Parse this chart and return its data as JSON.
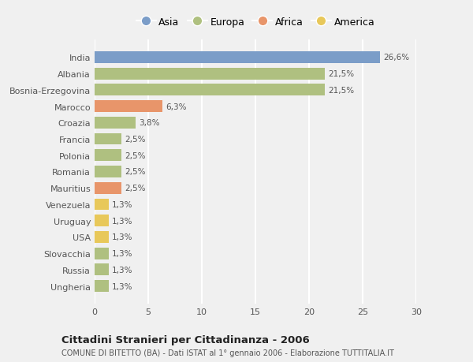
{
  "categories": [
    "Ungheria",
    "Russia",
    "Slovacchia",
    "USA",
    "Uruguay",
    "Venezuela",
    "Mauritius",
    "Romania",
    "Polonia",
    "Francia",
    "Croazia",
    "Marocco",
    "Bosnia-Erzegovina",
    "Albania",
    "India"
  ],
  "values": [
    1.3,
    1.3,
    1.3,
    1.3,
    1.3,
    1.3,
    2.5,
    2.5,
    2.5,
    2.5,
    3.8,
    6.3,
    21.5,
    21.5,
    26.6
  ],
  "colors": [
    "#afc080",
    "#afc080",
    "#afc080",
    "#e8c85a",
    "#e8c85a",
    "#e8c85a",
    "#e8956a",
    "#afc080",
    "#afc080",
    "#afc080",
    "#afc080",
    "#e8956a",
    "#afc080",
    "#afc080",
    "#7b9dc8"
  ],
  "labels": [
    "1,3%",
    "1,3%",
    "1,3%",
    "1,3%",
    "1,3%",
    "1,3%",
    "2,5%",
    "2,5%",
    "2,5%",
    "2,5%",
    "3,8%",
    "6,3%",
    "21,5%",
    "21,5%",
    "26,6%"
  ],
  "legend": [
    {
      "label": "Asia",
      "color": "#7b9dc8"
    },
    {
      "label": "Europa",
      "color": "#afc080"
    },
    {
      "label": "Africa",
      "color": "#e8956a"
    },
    {
      "label": "America",
      "color": "#e8c85a"
    }
  ],
  "title": "Cittadini Stranieri per Cittadinanza - 2006",
  "subtitle": "COMUNE DI BITETTO (BA) - Dati ISTAT al 1° gennaio 2006 - Elaborazione TUTTITALIA.IT",
  "xlim": [
    0,
    30
  ],
  "xticks": [
    0,
    5,
    10,
    15,
    20,
    25,
    30
  ],
  "bg_color": "#f0f0f0",
  "plot_bg_color": "#f0f0f0",
  "grid_color": "#ffffff",
  "bar_height": 0.72
}
